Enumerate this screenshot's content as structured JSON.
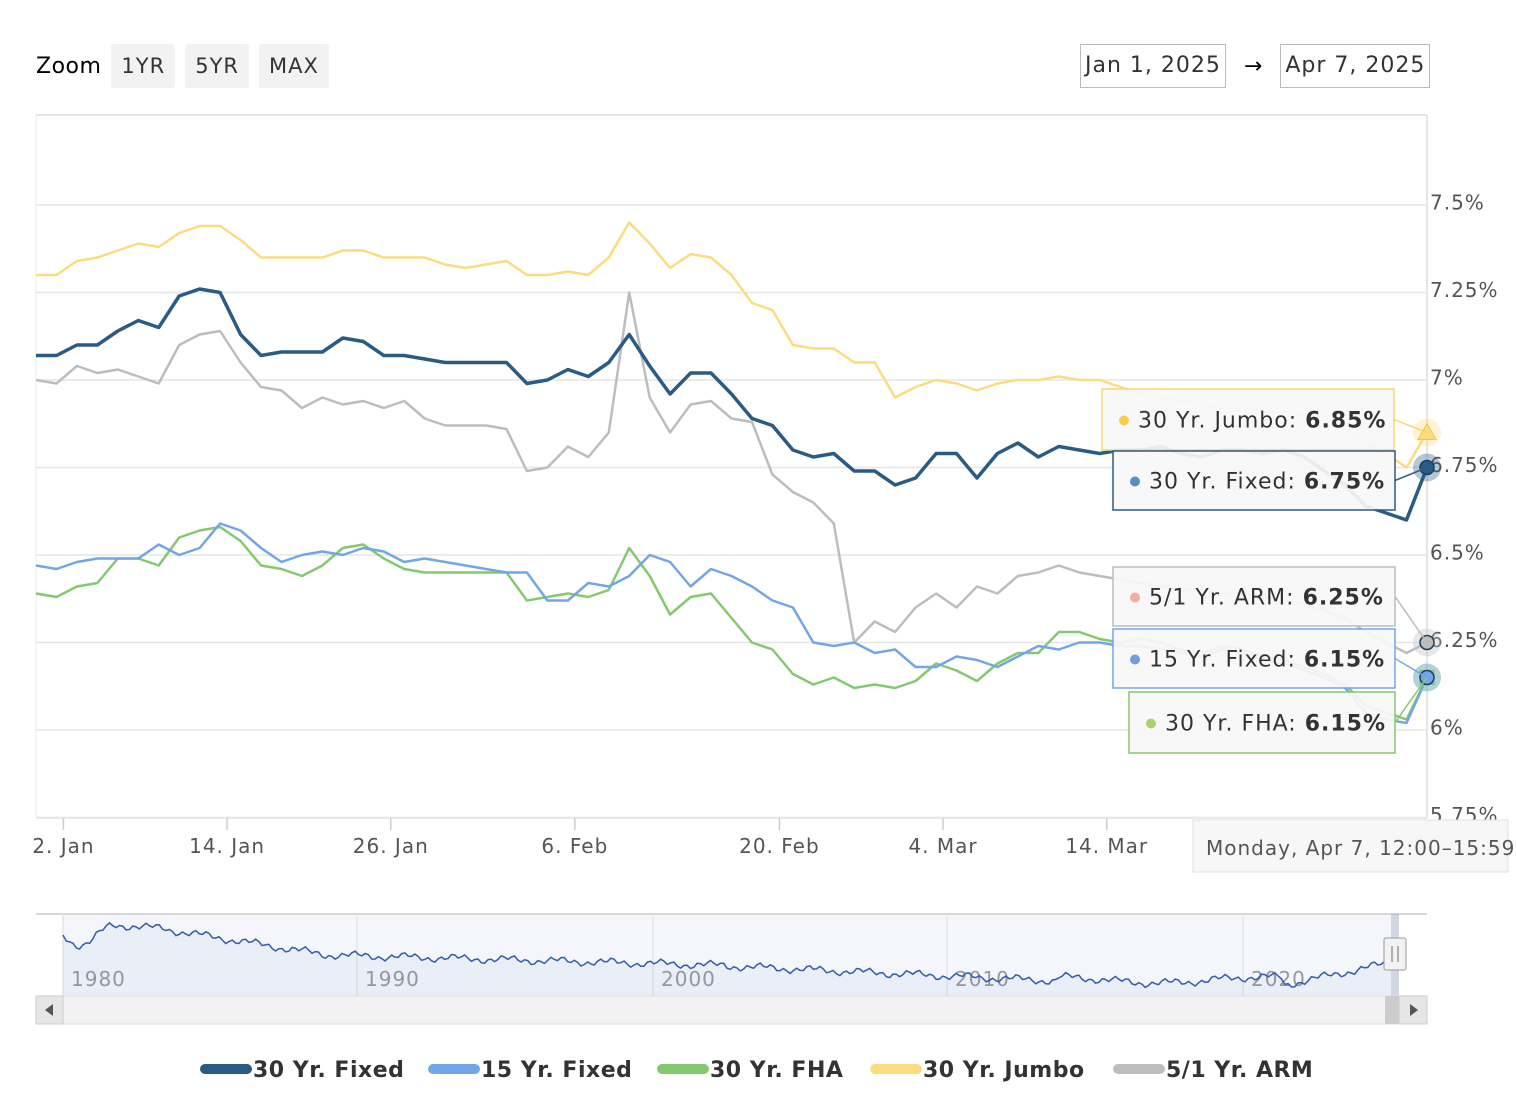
{
  "zoom": {
    "label": "Zoom",
    "buttons": [
      "1YR",
      "5YR",
      "MAX"
    ]
  },
  "range": {
    "from": "Jan 1, 2025",
    "arrow": "→",
    "to": "Apr 7, 2025"
  },
  "colors": {
    "fixed30": "#2a5b84",
    "fixed15": "#72a6e6",
    "fha30": "#85c96e",
    "jumbo30": "#fbdc7e",
    "arm51": "#bdbdbd",
    "grid": "#e6e6e6",
    "navigator_line": "#335cad"
  },
  "tooltip_header": "Monday, Apr 7, 12:00–15:59",
  "navigator": {
    "ticks": [
      "1980",
      "1990",
      "2000",
      "2010",
      "2020"
    ]
  },
  "chart_data": {
    "type": "line",
    "x": [
      "Jan 1",
      "Jan 2",
      "Jan 3",
      "Jan 6",
      "Jan 7",
      "Jan 8",
      "Jan 9",
      "Jan 10",
      "Jan 13",
      "Jan 14",
      "Jan 15",
      "Jan 16",
      "Jan 17",
      "Jan 20",
      "Jan 21",
      "Jan 22",
      "Jan 23",
      "Jan 24",
      "Jan 27",
      "Jan 28",
      "Jan 29",
      "Jan 30",
      "Jan 31",
      "Feb 3",
      "Feb 4",
      "Feb 5",
      "Feb 6",
      "Feb 7",
      "Feb 10",
      "Feb 11",
      "Feb 12",
      "Feb 13",
      "Feb 14",
      "Feb 17",
      "Feb 18",
      "Feb 19",
      "Feb 20",
      "Feb 21",
      "Feb 24",
      "Feb 25",
      "Feb 26",
      "Feb 27",
      "Feb 28",
      "Mar 3",
      "Mar 4",
      "Mar 5",
      "Mar 6",
      "Mar 7",
      "Mar 10",
      "Mar 11",
      "Mar 12",
      "Mar 13",
      "Mar 14",
      "Mar 17",
      "Mar 18",
      "Mar 19",
      "Mar 20",
      "Mar 21",
      "Mar 24",
      "Mar 25",
      "Mar 26",
      "Mar 27",
      "Mar 28",
      "Mar 31",
      "Apr 1",
      "Apr 2",
      "Apr 3",
      "Apr 4",
      "Apr 7"
    ],
    "x_ticks": [
      "2. Jan",
      "14. Jan",
      "26. Jan",
      "6. Feb",
      "20. Feb",
      "4. Mar",
      "14. Mar"
    ],
    "y_ticks": [
      "7.5%",
      "7.25%",
      "7%",
      "6.75%",
      "6.5%",
      "6.25%",
      "6%",
      "5.75%"
    ],
    "ylim": [
      5.75,
      7.78
    ],
    "legend_position": "bottom",
    "grid": true,
    "series": [
      {
        "name": "30 Yr. Fixed",
        "color": "#2a5b84",
        "values": [
          7.07,
          7.07,
          7.1,
          7.1,
          7.14,
          7.17,
          7.15,
          7.24,
          7.26,
          7.25,
          7.13,
          7.07,
          7.08,
          7.08,
          7.08,
          7.12,
          7.11,
          7.07,
          7.07,
          7.06,
          7.05,
          7.05,
          7.05,
          7.05,
          6.99,
          7.0,
          7.03,
          7.01,
          7.05,
          7.13,
          7.04,
          6.96,
          7.02,
          7.02,
          6.96,
          6.89,
          6.87,
          6.8,
          6.78,
          6.79,
          6.74,
          6.74,
          6.7,
          6.72,
          6.79,
          6.79,
          6.72,
          6.79,
          6.82,
          6.78,
          6.81,
          6.8,
          6.79,
          6.8,
          6.8,
          6.81,
          6.79,
          6.78,
          6.8,
          6.8,
          6.79,
          6.8,
          6.78,
          6.74,
          6.7,
          6.64,
          6.62,
          6.6,
          6.75
        ]
      },
      {
        "name": "15 Yr. Fixed",
        "color": "#72a6e6",
        "values": [
          6.47,
          6.46,
          6.48,
          6.49,
          6.49,
          6.49,
          6.53,
          6.5,
          6.52,
          6.59,
          6.57,
          6.52,
          6.48,
          6.5,
          6.51,
          6.5,
          6.52,
          6.51,
          6.48,
          6.49,
          6.48,
          6.47,
          6.46,
          6.45,
          6.45,
          6.37,
          6.37,
          6.42,
          6.41,
          6.44,
          6.5,
          6.48,
          6.41,
          6.46,
          6.44,
          6.41,
          6.37,
          6.35,
          6.25,
          6.24,
          6.25,
          6.22,
          6.23,
          6.18,
          6.18,
          6.21,
          6.2,
          6.18,
          6.21,
          6.24,
          6.23,
          6.25,
          6.25,
          6.24,
          6.24,
          6.23,
          6.22,
          6.21,
          6.23,
          6.22,
          6.2,
          6.19,
          6.17,
          6.15,
          6.12,
          6.05,
          6.03,
          6.02,
          6.15
        ]
      },
      {
        "name": "30 Yr. FHA",
        "color": "#85c96e",
        "values": [
          6.39,
          6.38,
          6.41,
          6.42,
          6.49,
          6.49,
          6.47,
          6.55,
          6.57,
          6.58,
          6.54,
          6.47,
          6.46,
          6.44,
          6.47,
          6.52,
          6.53,
          6.49,
          6.46,
          6.45,
          6.45,
          6.45,
          6.45,
          6.45,
          6.37,
          6.38,
          6.39,
          6.38,
          6.4,
          6.52,
          6.44,
          6.33,
          6.38,
          6.39,
          6.32,
          6.25,
          6.23,
          6.16,
          6.13,
          6.15,
          6.12,
          6.13,
          6.12,
          6.14,
          6.19,
          6.17,
          6.14,
          6.19,
          6.22,
          6.22,
          6.28,
          6.28,
          6.26,
          6.25,
          6.26,
          6.25,
          6.23,
          6.22,
          6.24,
          6.23,
          6.21,
          6.2,
          6.18,
          6.16,
          6.13,
          6.07,
          6.05,
          6.03,
          6.15
        ]
      },
      {
        "name": "30 Yr. Jumbo",
        "color": "#fbdc7e",
        "values": [
          7.3,
          7.3,
          7.34,
          7.35,
          7.37,
          7.39,
          7.38,
          7.42,
          7.44,
          7.44,
          7.4,
          7.35,
          7.35,
          7.35,
          7.35,
          7.37,
          7.37,
          7.35,
          7.35,
          7.35,
          7.33,
          7.32,
          7.33,
          7.34,
          7.3,
          7.3,
          7.31,
          7.3,
          7.35,
          7.45,
          7.39,
          7.32,
          7.36,
          7.35,
          7.3,
          7.22,
          7.2,
          7.1,
          7.09,
          7.09,
          7.05,
          7.05,
          6.95,
          6.98,
          7.0,
          6.99,
          6.97,
          6.99,
          7.0,
          7.0,
          7.01,
          7.0,
          7.0,
          6.98,
          6.96,
          6.95,
          6.94,
          6.93,
          6.92,
          6.92,
          6.91,
          6.91,
          6.9,
          6.88,
          6.86,
          6.82,
          6.79,
          6.75,
          6.85
        ]
      },
      {
        "name": "5/1 Yr. ARM",
        "color": "#bdbdbd",
        "values": [
          7.0,
          6.99,
          7.04,
          7.02,
          7.03,
          7.01,
          6.99,
          7.1,
          7.13,
          7.14,
          7.05,
          6.98,
          6.97,
          6.92,
          6.95,
          6.93,
          6.94,
          6.92,
          6.94,
          6.89,
          6.87,
          6.87,
          6.87,
          6.86,
          6.74,
          6.75,
          6.81,
          6.78,
          6.85,
          7.25,
          6.95,
          6.85,
          6.93,
          6.94,
          6.89,
          6.88,
          6.73,
          6.68,
          6.65,
          6.59,
          6.25,
          6.31,
          6.28,
          6.35,
          6.39,
          6.35,
          6.41,
          6.39,
          6.44,
          6.45,
          6.47,
          6.45,
          6.44,
          6.43,
          6.42,
          6.41,
          6.4,
          6.4,
          6.39,
          6.39,
          6.38,
          6.37,
          6.36,
          6.34,
          6.32,
          6.28,
          6.25,
          6.22,
          6.25
        ]
      }
    ],
    "tooltip": [
      {
        "name": "30 Yr. Jumbo",
        "label": "30 Yr. Jumbo: ",
        "value": "6.85%"
      },
      {
        "name": "30 Yr. Fixed",
        "label": "30 Yr. Fixed: ",
        "value": "6.75%"
      },
      {
        "name": "5/1 Yr. ARM",
        "label": "5/1 Yr. ARM: ",
        "value": "6.25%"
      },
      {
        "name": "15 Yr. Fixed",
        "label": "15 Yr. Fixed: ",
        "value": "6.15%"
      },
      {
        "name": "30 Yr. FHA",
        "label": "30 Yr. FHA: ",
        "value": "6.15%"
      }
    ]
  }
}
